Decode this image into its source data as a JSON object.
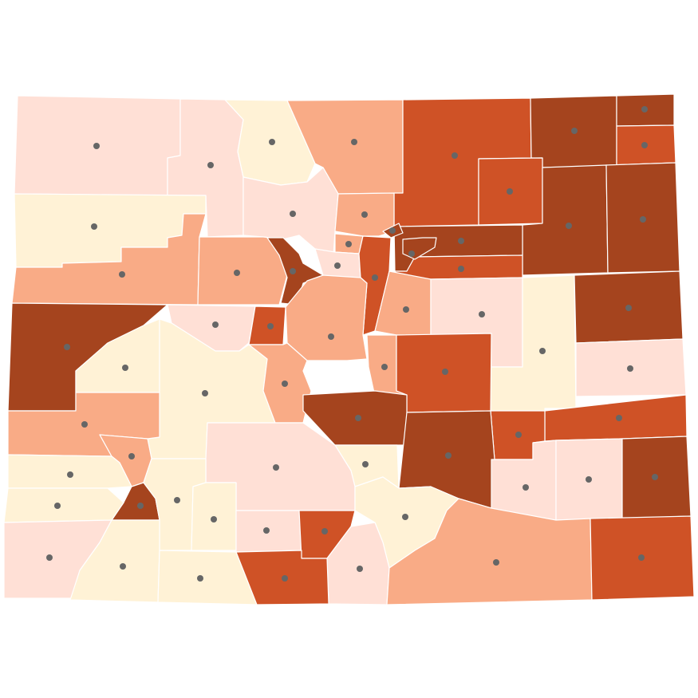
{
  "map": {
    "colors": [
      "#fff2d6",
      "#ffe0d6",
      "#f9ab86",
      "#cf5226",
      "#a5441e"
    ]
  }
}
